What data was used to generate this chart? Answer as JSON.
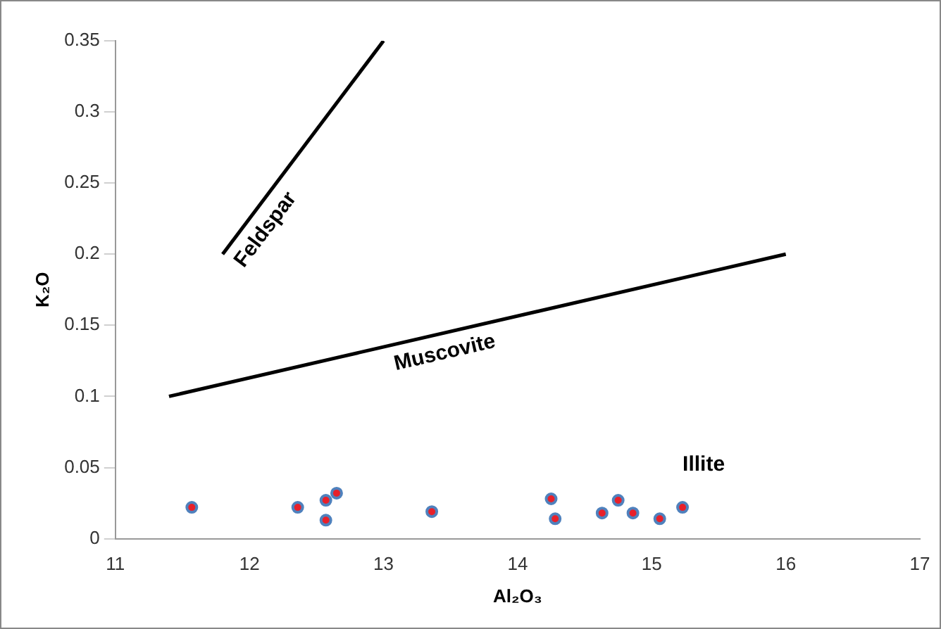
{
  "chart_data": {
    "type": "scatter",
    "xlabel": "Al₂O₃",
    "ylabel": "K₂O",
    "series": [
      {
        "color": "#4f81bd",
        "marker": "circle",
        "x": [
          11.57,
          12.36,
          12.57,
          12.57,
          12.65,
          13.36,
          14.25,
          14.28,
          14.63,
          14.75,
          14.86,
          15.06,
          15.23
        ],
        "values": [
          0.022,
          0.022,
          0.027,
          0.013,
          0.032,
          0.019,
          0.028,
          0.014,
          0.018,
          0.027,
          0.018,
          0.014,
          0.022
        ]
      },
      {
        "type": "line",
        "color": "#000000",
        "marker": "none",
        "x": [
          11.8,
          13
        ],
        "values": [
          0.2,
          0.35
        ]
      },
      {
        "type": "line",
        "color": "#000000",
        "marker": "none",
        "x": [
          11.4,
          16
        ],
        "values": [
          0.1,
          0.2
        ]
      }
    ],
    "annotations": [
      "Feldspar",
      "Muscovite",
      "Illite"
    ],
    "xlim": [
      11,
      17
    ],
    "xticks": [
      11,
      12,
      13,
      14,
      15,
      16,
      17
    ],
    "ylim": [
      0,
      0.35
    ],
    "yticks": [
      0,
      0.05,
      0.1,
      0.15,
      0.2,
      0.25,
      0.3,
      0.35
    ],
    "grid": false,
    "legend": false,
    "line_style": "solid"
  }
}
